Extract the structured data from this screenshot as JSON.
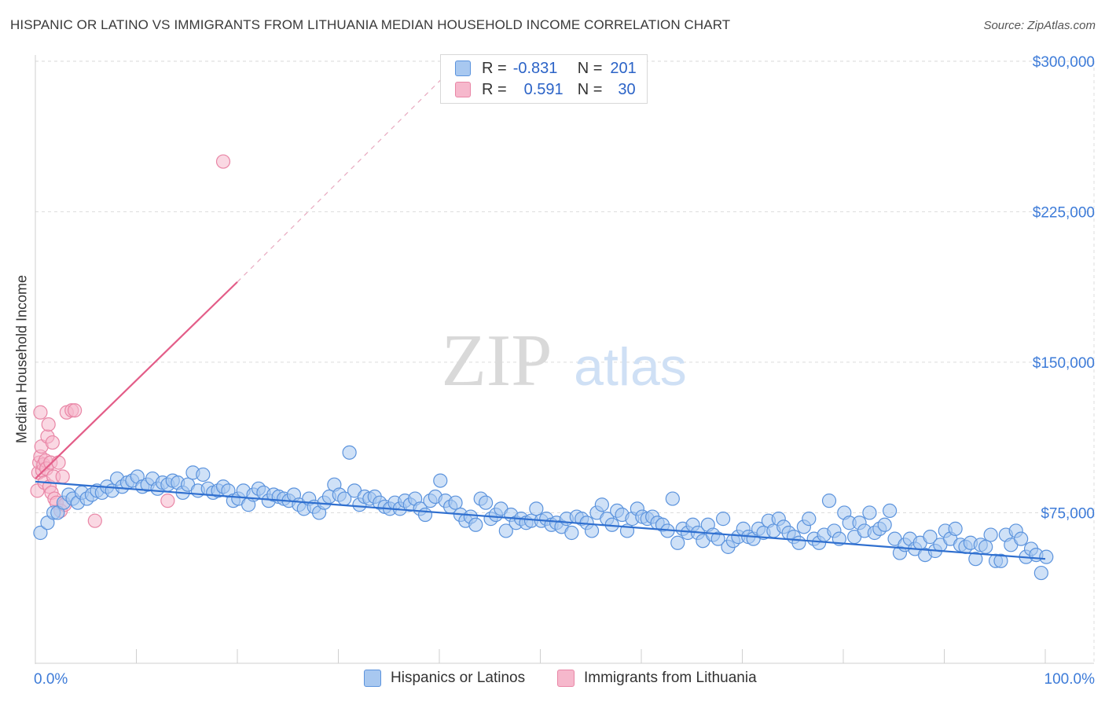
{
  "header": {
    "title": "HISPANIC OR LATINO VS IMMIGRANTS FROM LITHUANIA MEDIAN HOUSEHOLD INCOME CORRELATION CHART",
    "source": "Source: ZipAtlas.com"
  },
  "legend": {
    "rows": [
      {
        "r_label": "R =",
        "r_value": "-0.831",
        "n_label": "N =",
        "n_value": "201",
        "color": "#a8c8f0"
      },
      {
        "r_label": "R =",
        "r_value": "0.591",
        "n_label": "N =",
        "n_value": "30",
        "color": "#f6b8cc"
      }
    ]
  },
  "bottom_legend": [
    {
      "label": "Hispanics or Latinos",
      "color": "#a8c8f0"
    },
    {
      "label": "Immigrants from Lithuania",
      "color": "#f6b8cc"
    }
  ],
  "watermark": {
    "zip": "ZIP",
    "atlas": "atlas"
  },
  "colors": {
    "blue_fill": "#a8c8f0",
    "blue_stroke": "#5b93dd",
    "blue_line": "#2f6fcf",
    "pink_fill": "#f6b8cc",
    "pink_stroke": "#e986a6",
    "pink_line": "#e35d88",
    "axis_label": "#3d7bd8",
    "grid": "#dcdcdc"
  },
  "chart_data": {
    "type": "scatter",
    "title": "HISPANIC OR LATINO VS IMMIGRANTS FROM LITHUANIA MEDIAN HOUSEHOLD INCOME CORRELATION CHART",
    "xlabel": "",
    "ylabel": "Median Household Income",
    "xlim": [
      0,
      100
    ],
    "ylim": [
      0,
      310000
    ],
    "x_tick_labels": [
      "0.0%",
      "100.0%"
    ],
    "y_ticks": [
      75000,
      150000,
      225000,
      300000
    ],
    "y_tick_labels": [
      "$75,000",
      "$150,000",
      "$225,000",
      "$300,000"
    ],
    "grid": true,
    "series": [
      {
        "name": "Hispanics or Latinos",
        "trend": {
          "x": [
            0,
            100
          ],
          "y": [
            90500,
            52000
          ]
        },
        "points": [
          [
            0.5,
            65000
          ],
          [
            1.2,
            70000
          ],
          [
            1.8,
            75000
          ],
          [
            2.2,
            75000
          ],
          [
            2.8,
            80000
          ],
          [
            3.3,
            84000
          ],
          [
            3.7,
            82000
          ],
          [
            4.2,
            80000
          ],
          [
            4.6,
            85000
          ],
          [
            5.1,
            82000
          ],
          [
            5.6,
            84000
          ],
          [
            6.1,
            86000
          ],
          [
            6.6,
            85000
          ],
          [
            7.1,
            88000
          ],
          [
            7.6,
            86000
          ],
          [
            8.1,
            92000
          ],
          [
            8.6,
            88000
          ],
          [
            9.1,
            90000
          ],
          [
            9.6,
            91000
          ],
          [
            10.1,
            93000
          ],
          [
            10.6,
            88000
          ],
          [
            11.1,
            89000
          ],
          [
            11.6,
            92000
          ],
          [
            12.1,
            87000
          ],
          [
            12.6,
            90000
          ],
          [
            13.1,
            89000
          ],
          [
            13.6,
            91000
          ],
          [
            14.1,
            90000
          ],
          [
            14.6,
            85000
          ],
          [
            15.1,
            89000
          ],
          [
            15.6,
            95000
          ],
          [
            16.1,
            86000
          ],
          [
            16.6,
            94000
          ],
          [
            17.1,
            87000
          ],
          [
            17.6,
            85000
          ],
          [
            18.1,
            86000
          ],
          [
            18.6,
            88000
          ],
          [
            19.1,
            86000
          ],
          [
            19.6,
            81000
          ],
          [
            20.1,
            82000
          ],
          [
            20.6,
            86000
          ],
          [
            21.1,
            79000
          ],
          [
            21.6,
            84000
          ],
          [
            22.1,
            87000
          ],
          [
            22.6,
            85000
          ],
          [
            23.1,
            81000
          ],
          [
            23.6,
            84000
          ],
          [
            24.1,
            83000
          ],
          [
            24.6,
            82000
          ],
          [
            25.1,
            81000
          ],
          [
            25.6,
            84000
          ],
          [
            26.1,
            79000
          ],
          [
            26.6,
            77000
          ],
          [
            27.1,
            82000
          ],
          [
            27.6,
            78000
          ],
          [
            28.1,
            75000
          ],
          [
            28.6,
            80000
          ],
          [
            29.1,
            83000
          ],
          [
            29.6,
            89000
          ],
          [
            30.1,
            84000
          ],
          [
            30.6,
            82000
          ],
          [
            31.1,
            105000
          ],
          [
            31.6,
            86000
          ],
          [
            32.1,
            79000
          ],
          [
            32.6,
            83000
          ],
          [
            33.1,
            82000
          ],
          [
            33.6,
            83000
          ],
          [
            34.1,
            80000
          ],
          [
            34.6,
            78000
          ],
          [
            35.1,
            77000
          ],
          [
            35.6,
            80000
          ],
          [
            36.1,
            77000
          ],
          [
            36.6,
            81000
          ],
          [
            37.1,
            79000
          ],
          [
            37.6,
            82000
          ],
          [
            38.1,
            77000
          ],
          [
            38.6,
            74000
          ],
          [
            39.1,
            81000
          ],
          [
            39.6,
            83000
          ],
          [
            40.1,
            91000
          ],
          [
            40.6,
            81000
          ],
          [
            41.1,
            78000
          ],
          [
            41.6,
            80000
          ],
          [
            42.1,
            74000
          ],
          [
            42.6,
            71000
          ],
          [
            43.1,
            73000
          ],
          [
            43.6,
            69000
          ],
          [
            44.1,
            82000
          ],
          [
            44.6,
            80000
          ],
          [
            45.1,
            72000
          ],
          [
            45.6,
            74000
          ],
          [
            46.1,
            77000
          ],
          [
            46.6,
            66000
          ],
          [
            47.1,
            74000
          ],
          [
            47.6,
            70000
          ],
          [
            48.1,
            72000
          ],
          [
            48.6,
            70000
          ],
          [
            49.1,
            71000
          ],
          [
            49.6,
            77000
          ],
          [
            50.1,
            71000
          ],
          [
            50.6,
            72000
          ],
          [
            51.1,
            69000
          ],
          [
            51.6,
            70000
          ],
          [
            52.1,
            68000
          ],
          [
            52.6,
            72000
          ],
          [
            53.1,
            65000
          ],
          [
            53.6,
            73000
          ],
          [
            54.1,
            72000
          ],
          [
            54.6,
            70000
          ],
          [
            55.1,
            66000
          ],
          [
            55.6,
            75000
          ],
          [
            56.1,
            79000
          ],
          [
            56.6,
            72000
          ],
          [
            57.1,
            69000
          ],
          [
            57.6,
            76000
          ],
          [
            58.1,
            74000
          ],
          [
            58.6,
            66000
          ],
          [
            59.1,
            72000
          ],
          [
            59.6,
            77000
          ],
          [
            60.1,
            73000
          ],
          [
            60.6,
            72000
          ],
          [
            61.1,
            73000
          ],
          [
            61.6,
            70000
          ],
          [
            62.1,
            69000
          ],
          [
            62.6,
            66000
          ],
          [
            63.1,
            82000
          ],
          [
            63.6,
            60000
          ],
          [
            64.1,
            67000
          ],
          [
            64.6,
            65000
          ],
          [
            65.1,
            69000
          ],
          [
            65.6,
            65000
          ],
          [
            66.1,
            61000
          ],
          [
            66.6,
            69000
          ],
          [
            67.1,
            64000
          ],
          [
            67.6,
            62000
          ],
          [
            68.1,
            72000
          ],
          [
            68.6,
            58000
          ],
          [
            69.1,
            61000
          ],
          [
            69.6,
            63000
          ],
          [
            70.1,
            67000
          ],
          [
            70.6,
            63000
          ],
          [
            71.1,
            62000
          ],
          [
            71.6,
            67000
          ],
          [
            72.1,
            65000
          ],
          [
            72.6,
            71000
          ],
          [
            73.1,
            66000
          ],
          [
            73.6,
            72000
          ],
          [
            74.1,
            68000
          ],
          [
            74.6,
            65000
          ],
          [
            75.1,
            63000
          ],
          [
            75.6,
            60000
          ],
          [
            76.1,
            68000
          ],
          [
            76.6,
            72000
          ],
          [
            77.1,
            62000
          ],
          [
            77.6,
            60000
          ],
          [
            78.1,
            64000
          ],
          [
            78.6,
            81000
          ],
          [
            79.1,
            66000
          ],
          [
            79.6,
            62000
          ],
          [
            80.1,
            75000
          ],
          [
            80.6,
            70000
          ],
          [
            81.1,
            63000
          ],
          [
            81.6,
            70000
          ],
          [
            82.1,
            66000
          ],
          [
            82.6,
            75000
          ],
          [
            83.1,
            65000
          ],
          [
            83.6,
            67000
          ],
          [
            84.1,
            69000
          ],
          [
            84.6,
            76000
          ],
          [
            85.1,
            62000
          ],
          [
            85.6,
            55000
          ],
          [
            86.1,
            59000
          ],
          [
            86.6,
            62000
          ],
          [
            87.1,
            57000
          ],
          [
            87.6,
            60000
          ],
          [
            88.1,
            54000
          ],
          [
            88.6,
            63000
          ],
          [
            89.1,
            56000
          ],
          [
            89.6,
            59000
          ],
          [
            90.1,
            66000
          ],
          [
            90.6,
            62000
          ],
          [
            91.1,
            67000
          ],
          [
            91.6,
            59000
          ],
          [
            92.1,
            58000
          ],
          [
            92.6,
            60000
          ],
          [
            93.1,
            52000
          ],
          [
            93.6,
            59000
          ],
          [
            94.1,
            58000
          ],
          [
            94.6,
            64000
          ],
          [
            95.1,
            51000
          ],
          [
            95.6,
            51000
          ],
          [
            96.1,
            64000
          ],
          [
            96.6,
            59000
          ],
          [
            97.1,
            66000
          ],
          [
            97.6,
            62000
          ],
          [
            98.1,
            53000
          ],
          [
            98.6,
            57000
          ],
          [
            99.1,
            54000
          ],
          [
            99.6,
            45000
          ],
          [
            100.1,
            53000
          ]
        ]
      },
      {
        "name": "Immigrants from Lithuania",
        "trend": {
          "x": [
            0,
            20
          ],
          "y": [
            92000,
            190000
          ],
          "dashed_to": {
            "x": 42,
            "y": 300000
          }
        },
        "points": [
          [
            0.2,
            86000
          ],
          [
            0.3,
            95000
          ],
          [
            0.4,
            100000
          ],
          [
            0.5,
            103000
          ],
          [
            0.5,
            125000
          ],
          [
            0.6,
            108000
          ],
          [
            0.7,
            96000
          ],
          [
            0.8,
            99000
          ],
          [
            0.9,
            90000
          ],
          [
            1.0,
            101000
          ],
          [
            1.1,
            97000
          ],
          [
            1.2,
            113000
          ],
          [
            1.3,
            119000
          ],
          [
            1.4,
            88000
          ],
          [
            1.5,
            100000
          ],
          [
            1.6,
            85000
          ],
          [
            1.7,
            110000
          ],
          [
            1.8,
            93000
          ],
          [
            1.9,
            82000
          ],
          [
            2.1,
            80000
          ],
          [
            2.3,
            100000
          ],
          [
            2.5,
            76000
          ],
          [
            2.7,
            93000
          ],
          [
            2.9,
            79000
          ],
          [
            3.1,
            125000
          ],
          [
            3.6,
            126000
          ],
          [
            3.9,
            126000
          ],
          [
            5.9,
            71000
          ],
          [
            13.1,
            81000
          ],
          [
            18.6,
            250000
          ]
        ]
      }
    ]
  }
}
